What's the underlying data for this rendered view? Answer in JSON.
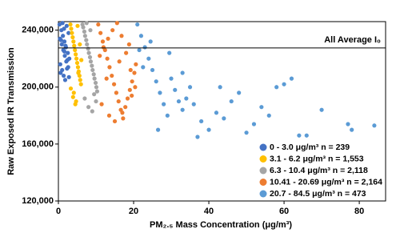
{
  "chart_data": {
    "type": "scatter",
    "x_label": "PM₂.₅ Mass Concentration (μg/m³)",
    "y_label": "Raw Exposed IR Transmission",
    "xlim": [
      0,
      87
    ],
    "ylim": [
      120000,
      246000
    ],
    "xticks": [
      0,
      20,
      40,
      60,
      80
    ],
    "yticks": [
      {
        "value": 120000,
        "label": "120,000"
      },
      {
        "value": 160000,
        "label": "160,000"
      },
      {
        "value": 200000,
        "label": "200,000"
      },
      {
        "value": 240000,
        "label": "240,000"
      }
    ],
    "reference_line": {
      "value": 227500,
      "label": "All Average I₀"
    },
    "legend": "lower right",
    "series": [
      {
        "name": "0 - 3.0 μg/m³ n = 239",
        "color": "#4472c4",
        "x": [
          0.3,
          0.8,
          1.2,
          1.6,
          2.0,
          2.5,
          2.9,
          0.5,
          1.0,
          1.4,
          1.8,
          2.2,
          2.7,
          0.4,
          0.9,
          1.3,
          1.7,
          2.1,
          2.6,
          0.6,
          1.1,
          1.5,
          1.9,
          2.4,
          2.8,
          0.7,
          1.6,
          2.3
        ],
        "values": [
          244000,
          240000,
          236000,
          232000,
          228000,
          224000,
          220000,
          216000,
          212000,
          208000,
          205000,
          243000,
          238000,
          234000,
          230000,
          226000,
          222000,
          218000,
          214000,
          210000,
          245000,
          241000,
          229000,
          219000,
          207000,
          233000,
          225000,
          213000
        ]
      },
      {
        "name": "3.1 - 6.2 μg/m³ n = 1,553",
        "color": "#ffc000",
        "x": [
          3.2,
          3.6,
          4.0,
          4.4,
          4.8,
          5.2,
          5.6,
          6.0,
          3.4,
          3.8,
          4.2,
          4.6,
          5.0,
          5.4,
          5.8,
          3.3,
          3.9,
          4.5,
          5.1,
          5.7,
          6.1,
          4.1,
          4.7,
          5.3
        ],
        "values": [
          244000,
          238000,
          232000,
          226000,
          220000,
          214000,
          208000,
          202000,
          241000,
          235000,
          229000,
          223000,
          217000,
          211000,
          205000,
          199000,
          193000,
          188000,
          243000,
          230000,
          219000,
          196000,
          190000,
          210000
        ]
      },
      {
        "name": "6.3 - 10.4 μg/m³ n = 2,118",
        "color": "#a5a5a5",
        "x": [
          6.4,
          6.9,
          7.4,
          7.9,
          8.4,
          8.9,
          9.4,
          9.9,
          10.3,
          6.6,
          7.1,
          7.6,
          8.1,
          8.6,
          9.1,
          9.6,
          10.1,
          7.0,
          8.0,
          9.0,
          10.0,
          7.5,
          8.5,
          9.5
        ],
        "values": [
          244000,
          239000,
          233000,
          227000,
          221000,
          215000,
          209000,
          203000,
          197000,
          242000,
          236000,
          230000,
          224000,
          218000,
          212000,
          206000,
          200000,
          192000,
          186000,
          183000,
          190000,
          245000,
          240000,
          195000
        ]
      },
      {
        "name": "10.41 - 20.69 μg/m³ n = 2,164",
        "color": "#ed7d31",
        "x": [
          10.6,
          11.2,
          11.8,
          12.4,
          13.0,
          13.6,
          14.2,
          14.8,
          15.4,
          16.0,
          16.6,
          17.2,
          17.8,
          18.4,
          19.0,
          19.6,
          20.2,
          20.6,
          11.0,
          12.0,
          13.2,
          14.4,
          15.6,
          16.8,
          18.0,
          19.2,
          20.4,
          11.5,
          13.5,
          15.0,
          17.0,
          19.5,
          12.8,
          16.2,
          18.8
        ],
        "values": [
          244000,
          238000,
          232000,
          226000,
          220000,
          214000,
          208000,
          202000,
          196000,
          190000,
          184000,
          178000,
          186000,
          192000,
          198000,
          204000,
          210000,
          216000,
          222000,
          228000,
          234000,
          240000,
          245000,
          236000,
          224000,
          212000,
          200000,
          188000,
          180000,
          176000,
          182000,
          194000,
          206000,
          218000,
          230000
        ]
      },
      {
        "name": "20.7 - 84.5 μg/m³ n = 473",
        "color": "#5b9bd5",
        "x": [
          21,
          22,
          23,
          24,
          25,
          26,
          27,
          28,
          29,
          30,
          31,
          32,
          33,
          34,
          35,
          36,
          38,
          40,
          42,
          44,
          46,
          48,
          50,
          52,
          54,
          56,
          58,
          60,
          62,
          64,
          66,
          70,
          77,
          78,
          84,
          21.5,
          22.5,
          24.5,
          26.5,
          29.5,
          33,
          37,
          43
        ],
        "values": [
          244000,
          236000,
          228000,
          220000,
          212000,
          204000,
          196000,
          188000,
          180000,
          206000,
          198000,
          190000,
          184000,
          192000,
          200000,
          188000,
          176000,
          170000,
          182000,
          178000,
          190000,
          196000,
          168000,
          174000,
          186000,
          180000,
          200000,
          202000,
          206000,
          166000,
          166000,
          184000,
          174000,
          170000,
          173000,
          226000,
          214000,
          232000,
          170000,
          224000,
          210000,
          165000,
          200000
        ]
      }
    ]
  }
}
